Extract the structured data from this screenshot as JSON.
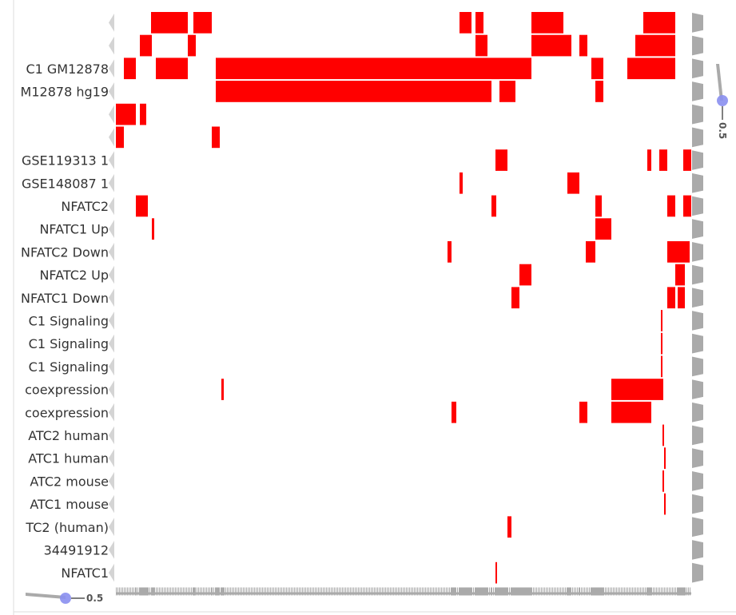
{
  "colors": {
    "hit": "#ff0000",
    "background": "#ffffff",
    "gutter": "#aaaaaa",
    "axis_line": "#dddddd",
    "handle": "#8a8ff0"
  },
  "column_count": 720,
  "sliders": {
    "horizontal": {
      "label": "0.5",
      "value": 0.5
    },
    "vertical": {
      "label": "0.5",
      "value": 0.5
    }
  },
  "chart_data": {
    "type": "heatmap",
    "rows": [
      {
        "label": "",
        "hits": [
          [
            44,
            90
          ],
          [
            97,
            120
          ],
          [
            430,
            445
          ],
          [
            450,
            460
          ],
          [
            520,
            560
          ],
          [
            660,
            700
          ]
        ]
      },
      {
        "label": "",
        "hits": [
          [
            30,
            45
          ],
          [
            90,
            100
          ],
          [
            450,
            465
          ],
          [
            520,
            570
          ],
          [
            580,
            590
          ],
          [
            650,
            700
          ]
        ]
      },
      {
        "label": "C1 GM12878",
        "hits": [
          [
            10,
            25
          ],
          [
            50,
            90
          ],
          [
            125,
            470
          ],
          [
            470,
            520
          ],
          [
            595,
            610
          ],
          [
            640,
            700
          ]
        ]
      },
      {
        "label": "M12878 hg19",
        "hits": [
          [
            125,
            470
          ],
          [
            480,
            500
          ],
          [
            600,
            610
          ]
        ]
      },
      {
        "label": "",
        "hits": [
          [
            0,
            25
          ],
          [
            30,
            38
          ]
        ]
      },
      {
        "label": "",
        "hits": [
          [
            0,
            10
          ],
          [
            120,
            130
          ]
        ]
      },
      {
        "label": "GSE119313 1",
        "hits": [
          [
            475,
            490
          ],
          [
            665,
            670
          ],
          [
            680,
            690
          ],
          [
            710,
            720
          ]
        ]
      },
      {
        "label": "GSE148087 1",
        "hits": [
          [
            565,
            580
          ],
          [
            430,
            434
          ]
        ]
      },
      {
        "label": "NFATC2",
        "hits": [
          [
            25,
            40
          ],
          [
            470,
            476
          ],
          [
            600,
            608
          ],
          [
            690,
            700
          ],
          [
            710,
            720
          ]
        ]
      },
      {
        "label": "NFATC1 Up",
        "hits": [
          [
            45,
            48
          ],
          [
            600,
            620
          ]
        ]
      },
      {
        "label": "NFATC2 Down",
        "hits": [
          [
            415,
            420
          ],
          [
            588,
            600
          ],
          [
            690,
            700
          ],
          [
            700,
            718
          ]
        ]
      },
      {
        "label": "NFATC2 Up",
        "hits": [
          [
            505,
            520
          ],
          [
            700,
            712
          ]
        ]
      },
      {
        "label": "NFATC1 Down",
        "hits": [
          [
            495,
            505
          ],
          [
            690,
            700
          ],
          [
            703,
            712
          ]
        ]
      },
      {
        "label": "C1 Signaling",
        "hits": [
          [
            682,
            684
          ]
        ]
      },
      {
        "label": "C1 Signaling",
        "hits": [
          [
            682,
            684
          ]
        ]
      },
      {
        "label": "C1 Signaling",
        "hits": [
          [
            682,
            684
          ]
        ]
      },
      {
        "label": "coexpression",
        "hits": [
          [
            132,
            135
          ],
          [
            620,
            685
          ]
        ]
      },
      {
        "label": "coexpression",
        "hits": [
          [
            420,
            426
          ],
          [
            580,
            590
          ],
          [
            620,
            670
          ]
        ]
      },
      {
        "label": "ATC2 human",
        "hits": [
          [
            684,
            686
          ]
        ]
      },
      {
        "label": "ATC1 human",
        "hits": [
          [
            686,
            688
          ]
        ]
      },
      {
        "label": "ATC2 mouse",
        "hits": [
          [
            684,
            686
          ]
        ]
      },
      {
        "label": "ATC1 mouse",
        "hits": [
          [
            686,
            688
          ]
        ]
      },
      {
        "label": "TC2 (human)",
        "hits": [
          [
            490,
            495
          ]
        ]
      },
      {
        "label": "34491912",
        "hits": []
      },
      {
        "label": "NFATC1",
        "hits": [
          [
            475,
            477
          ]
        ]
      }
    ]
  }
}
